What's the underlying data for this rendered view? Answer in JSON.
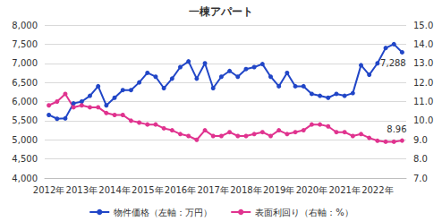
{
  "chart_data": {
    "type": "line",
    "title": "一棟アパート",
    "categories": [
      "2012年",
      null,
      null,
      null,
      "2013年",
      null,
      null,
      null,
      "2014年",
      null,
      null,
      null,
      "2015年",
      null,
      null,
      null,
      "2016年",
      null,
      null,
      null,
      "2017年",
      null,
      null,
      null,
      "2018年",
      null,
      null,
      null,
      "2019年",
      null,
      null,
      null,
      "2020年",
      null,
      null,
      null,
      "2021年",
      null,
      null,
      null,
      "2022年",
      null,
      null,
      null
    ],
    "series": [
      {
        "name": "物件価格（左軸：万円）",
        "color": "#2146c7",
        "marker": "circle",
        "axis": "y",
        "values": [
          5650,
          5550,
          5560,
          5950,
          6000,
          6150,
          6400,
          5900,
          6100,
          6300,
          6300,
          6500,
          6750,
          6650,
          6350,
          6600,
          6900,
          7050,
          6600,
          7000,
          6350,
          6650,
          6800,
          6650,
          6850,
          6900,
          6980,
          6650,
          6400,
          6750,
          6400,
          6400,
          6200,
          6150,
          6100,
          6200,
          6150,
          6220,
          6950,
          6700,
          7000,
          7400,
          7500,
          7288
        ],
        "value_labels": [
          null,
          null,
          null,
          null,
          null,
          null,
          null,
          null,
          null,
          null,
          null,
          null,
          null,
          null,
          null,
          null,
          null,
          null,
          null,
          null,
          null,
          null,
          null,
          null,
          null,
          null,
          null,
          null,
          null,
          null,
          null,
          null,
          null,
          null,
          null,
          null,
          null,
          null,
          null,
          null,
          null,
          null,
          null,
          "7,288"
        ]
      },
      {
        "name": "表面利回り（右軸：%）",
        "color": "#e0338f",
        "marker": "circle",
        "axis": "y2",
        "values": [
          10.8,
          11.0,
          11.4,
          10.7,
          10.8,
          10.7,
          10.7,
          10.4,
          10.3,
          10.3,
          10.0,
          9.9,
          9.8,
          9.8,
          9.6,
          9.5,
          9.3,
          9.2,
          9.0,
          9.5,
          9.2,
          9.2,
          9.4,
          9.2,
          9.2,
          9.3,
          9.4,
          9.2,
          9.5,
          9.3,
          9.4,
          9.5,
          9.8,
          9.8,
          9.7,
          9.4,
          9.4,
          9.2,
          9.3,
          9.1,
          8.95,
          8.9,
          8.9,
          8.96
        ],
        "value_labels": [
          null,
          null,
          null,
          null,
          null,
          null,
          null,
          null,
          null,
          null,
          null,
          null,
          null,
          null,
          null,
          null,
          null,
          null,
          null,
          null,
          null,
          null,
          null,
          null,
          null,
          null,
          null,
          null,
          null,
          null,
          null,
          null,
          null,
          null,
          null,
          null,
          null,
          null,
          null,
          null,
          null,
          null,
          null,
          "8.96"
        ]
      }
    ],
    "ylim": [
      4000,
      8000
    ],
    "yticks": [
      {
        "value": 4000,
        "label": "4,000"
      },
      {
        "value": 4500,
        "label": "4,500"
      },
      {
        "value": 5000,
        "label": "5,000"
      },
      {
        "value": 5500,
        "label": "5,500"
      },
      {
        "value": 6000,
        "label": "6,000"
      },
      {
        "value": 6500,
        "label": "6,500"
      },
      {
        "value": 7000,
        "label": "7,000"
      },
      {
        "value": 7500,
        "label": "7,500"
      },
      {
        "value": 8000,
        "label": "8,000"
      }
    ],
    "y2lim": [
      7,
      15
    ],
    "y2ticks": [
      {
        "value": 7,
        "label": "7.0"
      },
      {
        "value": 8,
        "label": "8.0"
      },
      {
        "value": 9,
        "label": "9.0"
      },
      {
        "value": 10,
        "label": "10.0"
      },
      {
        "value": 11,
        "label": "11.0"
      },
      {
        "value": 12,
        "label": "12.0"
      },
      {
        "value": 13,
        "label": "13.0"
      },
      {
        "value": 14,
        "label": "14.0"
      },
      {
        "value": 15,
        "label": "15.0"
      }
    ],
    "grid": true,
    "legend": "bottom"
  }
}
